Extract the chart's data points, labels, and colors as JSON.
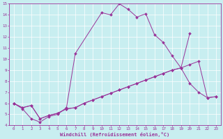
{
  "xlabel": "Windchill (Refroidissement éolien,°C)",
  "background_color": "#c8eef0",
  "line_color": "#993399",
  "xlim": [
    -0.5,
    23.5
  ],
  "ylim": [
    4,
    15
  ],
  "xticks": [
    0,
    1,
    2,
    3,
    4,
    5,
    6,
    7,
    8,
    9,
    10,
    11,
    12,
    13,
    14,
    15,
    16,
    17,
    18,
    19,
    20,
    21,
    22,
    23
  ],
  "yticks": [
    4,
    5,
    6,
    7,
    8,
    9,
    10,
    11,
    12,
    13,
    14,
    15
  ],
  "line1_x": [
    0,
    1,
    2,
    3,
    4,
    5,
    6,
    7,
    8,
    9,
    10,
    11,
    12,
    13,
    14,
    15,
    16,
    17,
    18,
    19,
    20,
    21,
    22,
    23
  ],
  "line1_y": [
    6.0,
    5.6,
    5.8,
    4.6,
    4.9,
    5.1,
    5.5,
    5.6,
    6.0,
    6.3,
    6.6,
    6.9,
    7.2,
    7.5,
    7.8,
    8.1,
    8.4,
    8.7,
    9.0,
    9.2,
    9.5,
    9.8,
    6.5,
    6.6
  ],
  "line2_x": [
    0,
    1,
    2,
    3,
    4,
    5,
    6,
    7,
    8,
    9,
    10,
    11,
    12,
    13,
    14,
    15,
    16,
    17,
    18,
    19,
    20,
    21,
    22,
    23
  ],
  "line2_y": [
    6.0,
    5.6,
    5.8,
    4.6,
    4.9,
    5.1,
    5.5,
    5.6,
    6.0,
    6.3,
    6.6,
    6.9,
    7.2,
    7.5,
    7.8,
    8.1,
    8.4,
    8.7,
    9.0,
    9.2,
    7.8,
    7.0,
    6.5,
    6.6
  ],
  "line3_x": [
    0,
    1,
    2,
    3,
    4,
    5,
    6,
    7,
    10,
    11,
    12,
    13,
    14,
    15,
    16,
    17,
    18,
    19,
    20
  ],
  "line3_y": [
    6.0,
    5.5,
    4.6,
    4.3,
    4.8,
    5.0,
    5.6,
    10.5,
    14.2,
    14.0,
    15.0,
    14.5,
    13.8,
    14.1,
    12.2,
    11.5,
    10.3,
    9.2,
    12.3
  ]
}
